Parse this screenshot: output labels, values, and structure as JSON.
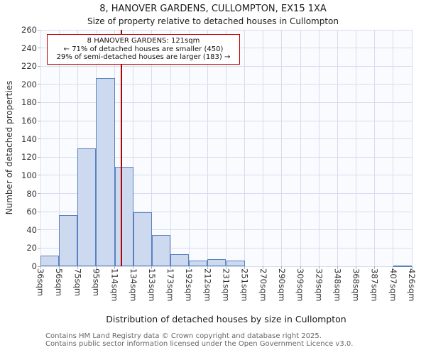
{
  "chart_data": {
    "type": "bar",
    "title": "8, HANOVER GARDENS, CULLOMPTON, EX15 1XA",
    "subtitle": "Size of property relative to detached houses in Cullompton",
    "xlabel": "Distribution of detached houses by size in Cullompton",
    "ylabel": "Number of detached properties",
    "ylim": [
      0,
      260
    ],
    "ytick_step": 20,
    "grid": true,
    "bin_edges": [
      36,
      56,
      75,
      95,
      114,
      134,
      153,
      173,
      192,
      212,
      231,
      251,
      270,
      290,
      309,
      329,
      348,
      368,
      387,
      407,
      426
    ],
    "tick_labels": [
      "36sqm",
      "56sqm",
      "75sqm",
      "95sqm",
      "114sqm",
      "134sqm",
      "153sqm",
      "173sqm",
      "192sqm",
      "212sqm",
      "231sqm",
      "251sqm",
      "270sqm",
      "290sqm",
      "309sqm",
      "329sqm",
      "348sqm",
      "368sqm",
      "387sqm",
      "407sqm",
      "426sqm"
    ],
    "values": [
      12,
      56,
      130,
      207,
      109,
      59,
      34,
      13,
      6,
      8,
      6,
      0,
      0,
      0,
      0,
      0,
      0,
      0,
      0,
      1
    ],
    "bar_fill": "#ccd9ef",
    "bar_border": "#5b82c0",
    "grid_color": "#d5ddee",
    "marker": {
      "value": 121,
      "color": "#b00000",
      "label": "121sqm"
    },
    "annotation": {
      "line1": "8 HANOVER GARDENS: 121sqm",
      "line2": "← 71% of detached houses are smaller (450)",
      "line3": "29% of semi-detached houses are larger (183) →"
    }
  },
  "footer": {
    "line1": "Contains HM Land Registry data © Crown copyright and database right 2025.",
    "line2": "Contains public sector information licensed under the Open Government Licence v3.0."
  }
}
